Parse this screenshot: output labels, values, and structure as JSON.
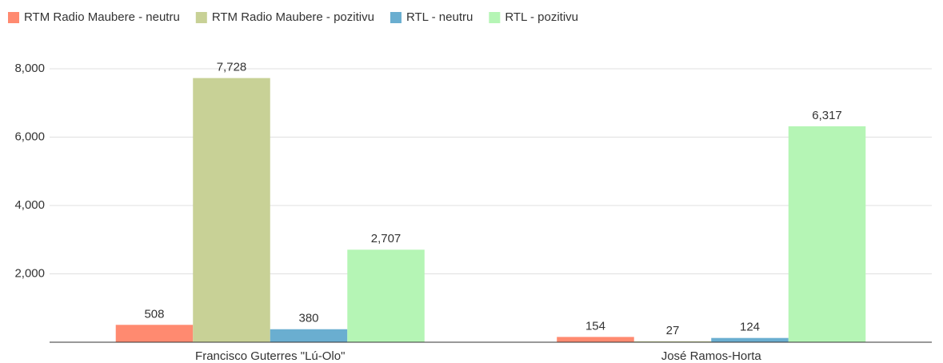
{
  "chart_data": {
    "type": "bar",
    "categories": [
      "Francisco Guterres \"Lú-Olo\"",
      "José Ramos-Horta"
    ],
    "series": [
      {
        "name": "RTM Radio Maubere - neutru",
        "color": "#ff8a70",
        "values": [
          508,
          154
        ],
        "value_labels": [
          "508",
          "154"
        ]
      },
      {
        "name": "RTM Radio Maubere - pozitivu",
        "color": "#c8d196",
        "values": [
          7728,
          27
        ],
        "value_labels": [
          "7,728",
          "27"
        ]
      },
      {
        "name": "RTL - neutru",
        "color": "#6aaed0",
        "values": [
          380,
          124
        ],
        "value_labels": [
          "380",
          "124"
        ]
      },
      {
        "name": "RTL - pozitivu",
        "color": "#b5f5b5",
        "values": [
          2707,
          6317
        ],
        "value_labels": [
          "2,707",
          "6,317"
        ]
      }
    ],
    "ylim": [
      0,
      8000
    ],
    "yticks": [
      {
        "value": 2000,
        "label": "2,000"
      },
      {
        "value": 4000,
        "label": "4,000"
      },
      {
        "value": 6000,
        "label": "6,000"
      },
      {
        "value": 8000,
        "label": "8,000"
      }
    ],
    "grid": true,
    "legend": "top"
  }
}
